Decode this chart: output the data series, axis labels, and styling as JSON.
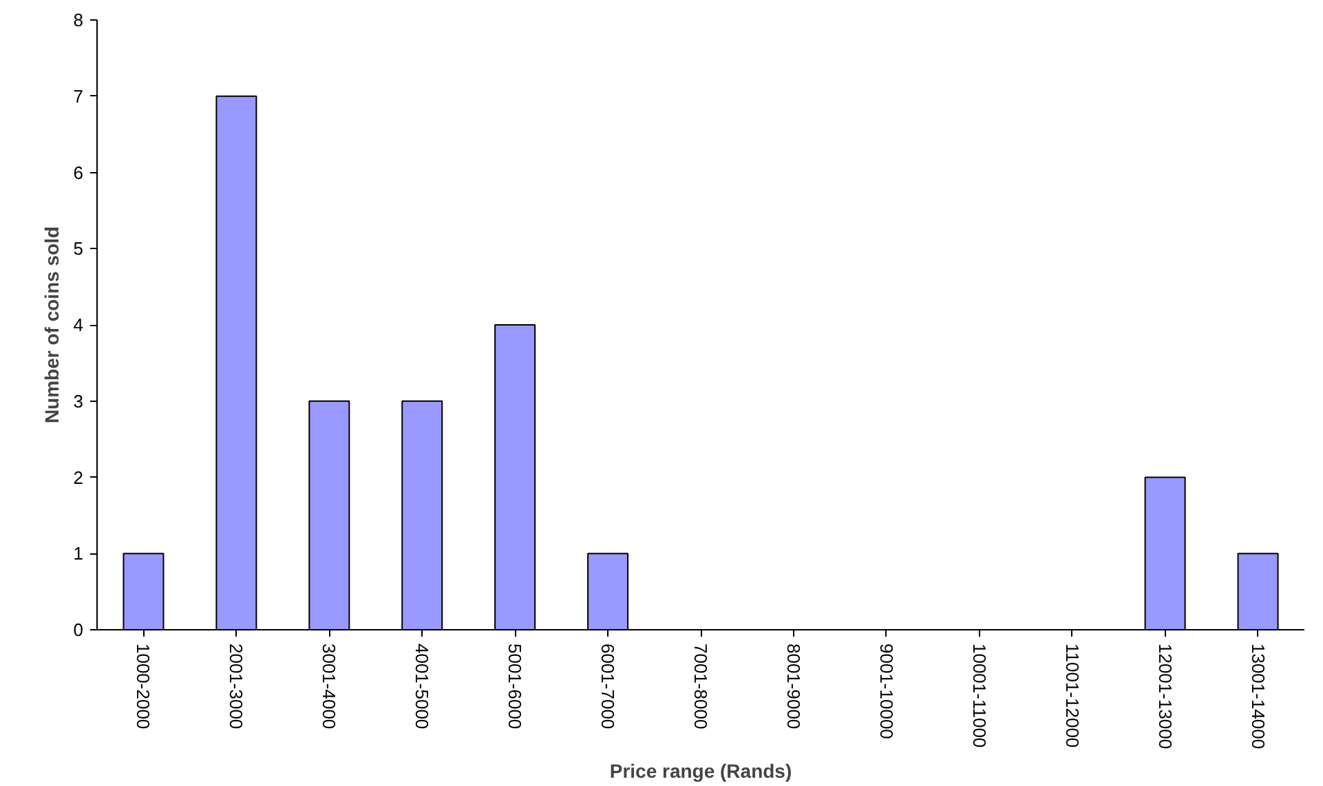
{
  "chart_data": {
    "type": "bar",
    "xlabel": "Price range (Rands)",
    "ylabel": "Number of coins sold",
    "categories": [
      "1000-2000",
      "2001-3000",
      "3001-4000",
      "4001-5000",
      "5001-6000",
      "6001-7000",
      "7001-8000",
      "8001-9000",
      "9001-10000",
      "10001-11000",
      "11001-12000",
      "12001-13000",
      "13001-14000"
    ],
    "values": [
      1,
      7,
      3,
      3,
      4,
      1,
      0,
      0,
      0,
      0,
      0,
      2,
      1
    ],
    "color": "#9999ff",
    "ylim": [
      0,
      8
    ],
    "yticks": [
      0,
      1,
      2,
      3,
      4,
      5,
      6,
      7,
      8
    ],
    "grid": false
  }
}
